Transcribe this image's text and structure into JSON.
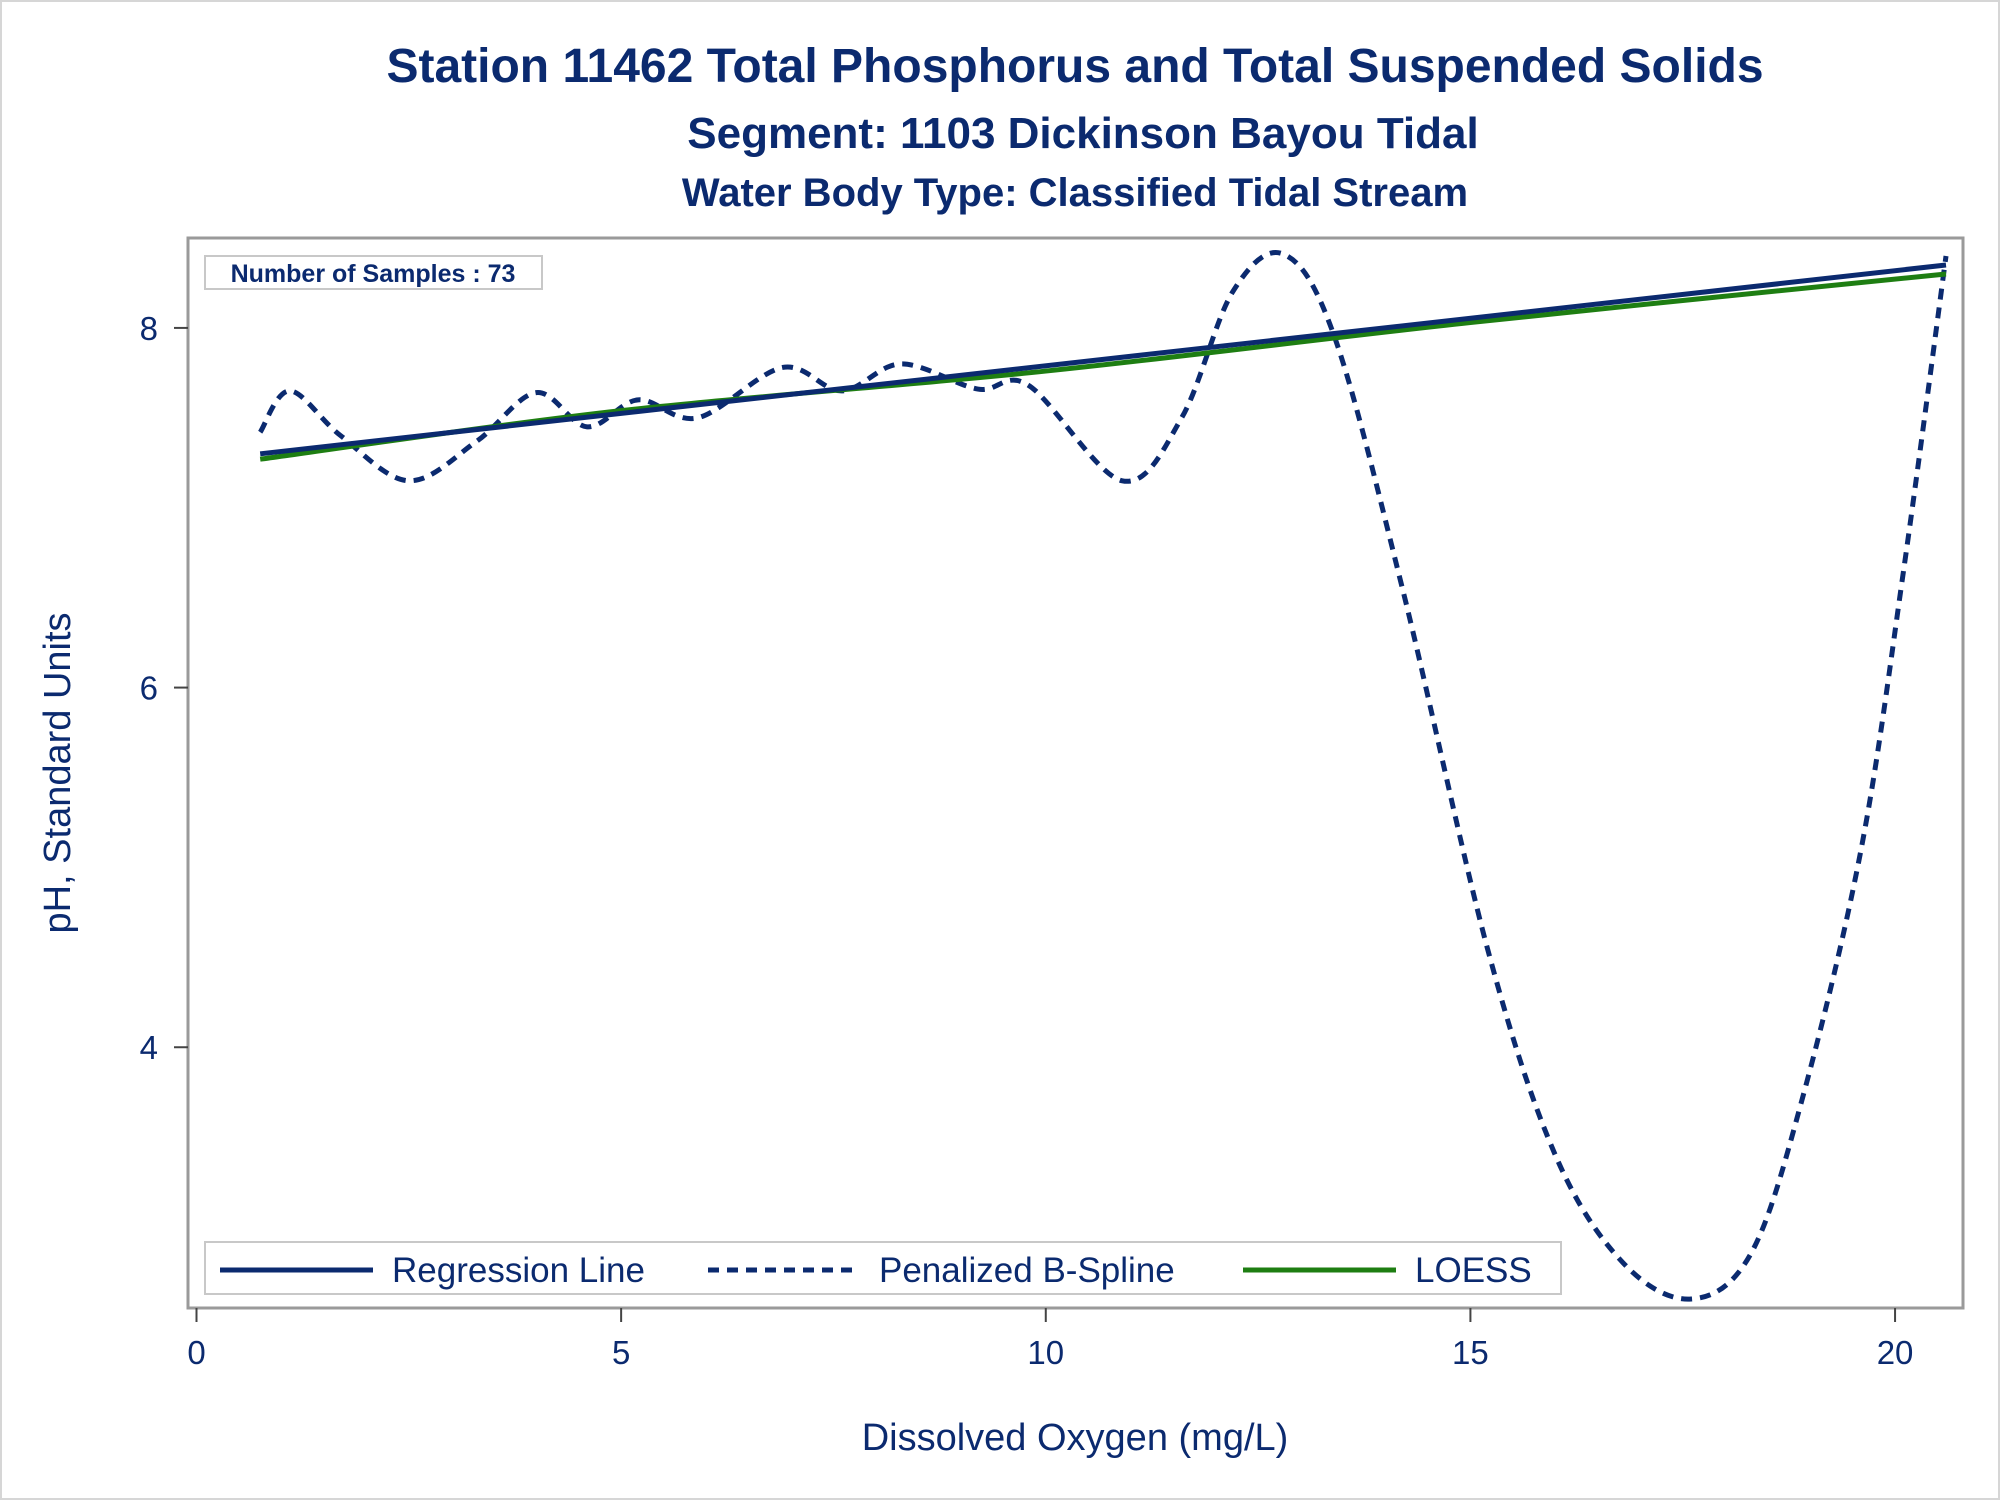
{
  "colors": {
    "text": "#0b2a6f",
    "regression": "#0b2a6f",
    "spline": "#0b2a6f",
    "loess": "#1e7e12",
    "frame": "#9a9a9a"
  },
  "chart_data": {
    "type": "line",
    "title": "Station 11462  Total Phosphorus and Total Suspended Solids",
    "subtitle": "Segment: 1103  Dickinson Bayou Tidal",
    "subtitle2": "Water Body Type: Classified Tidal Stream",
    "xlabel": "Dissolved Oxygen (mg/L)",
    "ylabel": "pH, Standard Units",
    "xlim": [
      -0.1,
      20.8
    ],
    "ylim": [
      2.55,
      8.5
    ],
    "xticks": [
      0,
      5,
      10,
      15,
      20
    ],
    "yticks": [
      4,
      6,
      8
    ],
    "inset_label": "Number of Samples : 73",
    "legend_position": "bottom-left inside",
    "series": [
      {
        "name": "Regression Line",
        "style": "solid",
        "x": [
          0.75,
          20.6
        ],
        "y": [
          7.3,
          8.35
        ]
      },
      {
        "name": "Penalized B-Spline",
        "style": "dashed",
        "x": [
          0.75,
          1.1,
          1.7,
          2.5,
          3.3,
          4.0,
          4.6,
          5.2,
          5.9,
          6.9,
          7.6,
          8.3,
          9.2,
          9.8,
          10.9,
          11.6,
          12.2,
          12.8,
          13.4,
          14.2,
          15.2,
          16.0,
          16.8,
          17.6,
          18.3,
          18.9,
          19.6,
          20.1,
          20.6
        ],
        "y": [
          7.42,
          7.65,
          7.4,
          7.15,
          7.37,
          7.64,
          7.45,
          7.6,
          7.5,
          7.78,
          7.65,
          7.8,
          7.66,
          7.68,
          7.15,
          7.5,
          8.2,
          8.41,
          7.95,
          6.55,
          4.55,
          3.4,
          2.8,
          2.6,
          2.85,
          3.7,
          5.1,
          6.65,
          8.4
        ]
      },
      {
        "name": "LOESS",
        "style": "solid",
        "x": [
          0.75,
          5,
          10,
          15,
          20.6
        ],
        "y": [
          7.27,
          7.54,
          7.76,
          8.03,
          8.3
        ]
      }
    ]
  }
}
